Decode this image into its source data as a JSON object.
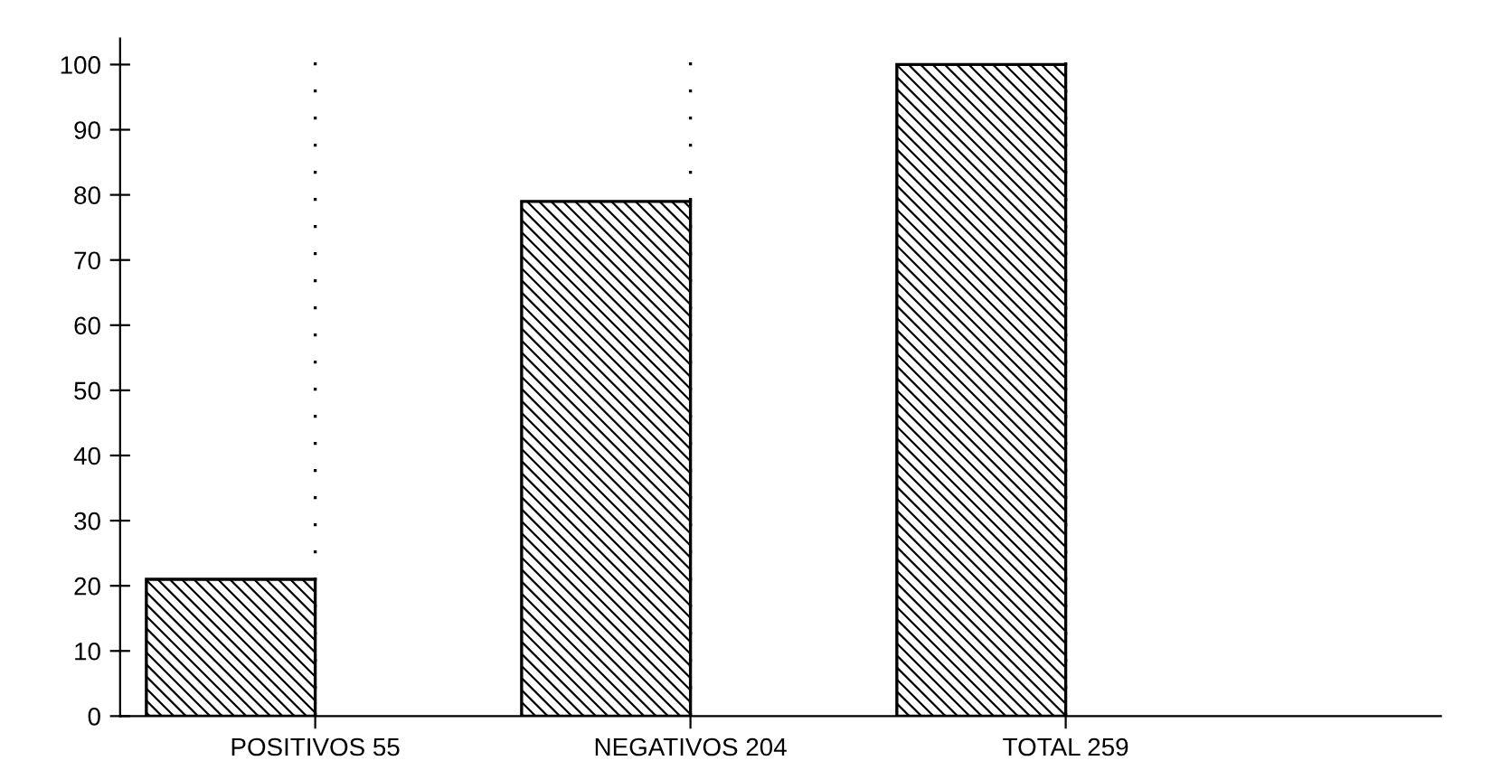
{
  "chart_data": {
    "type": "bar",
    "categories": [
      "POSITIVOS 55",
      "NEGATIVOS 204",
      "TOTAL 259"
    ],
    "values": [
      21,
      79,
      100
    ],
    "color": "#000000",
    "ylim": [
      0,
      104
    ],
    "yticks": [
      0,
      10,
      20,
      30,
      40,
      50,
      60,
      70,
      80,
      90,
      100
    ],
    "grid": "x"
  }
}
